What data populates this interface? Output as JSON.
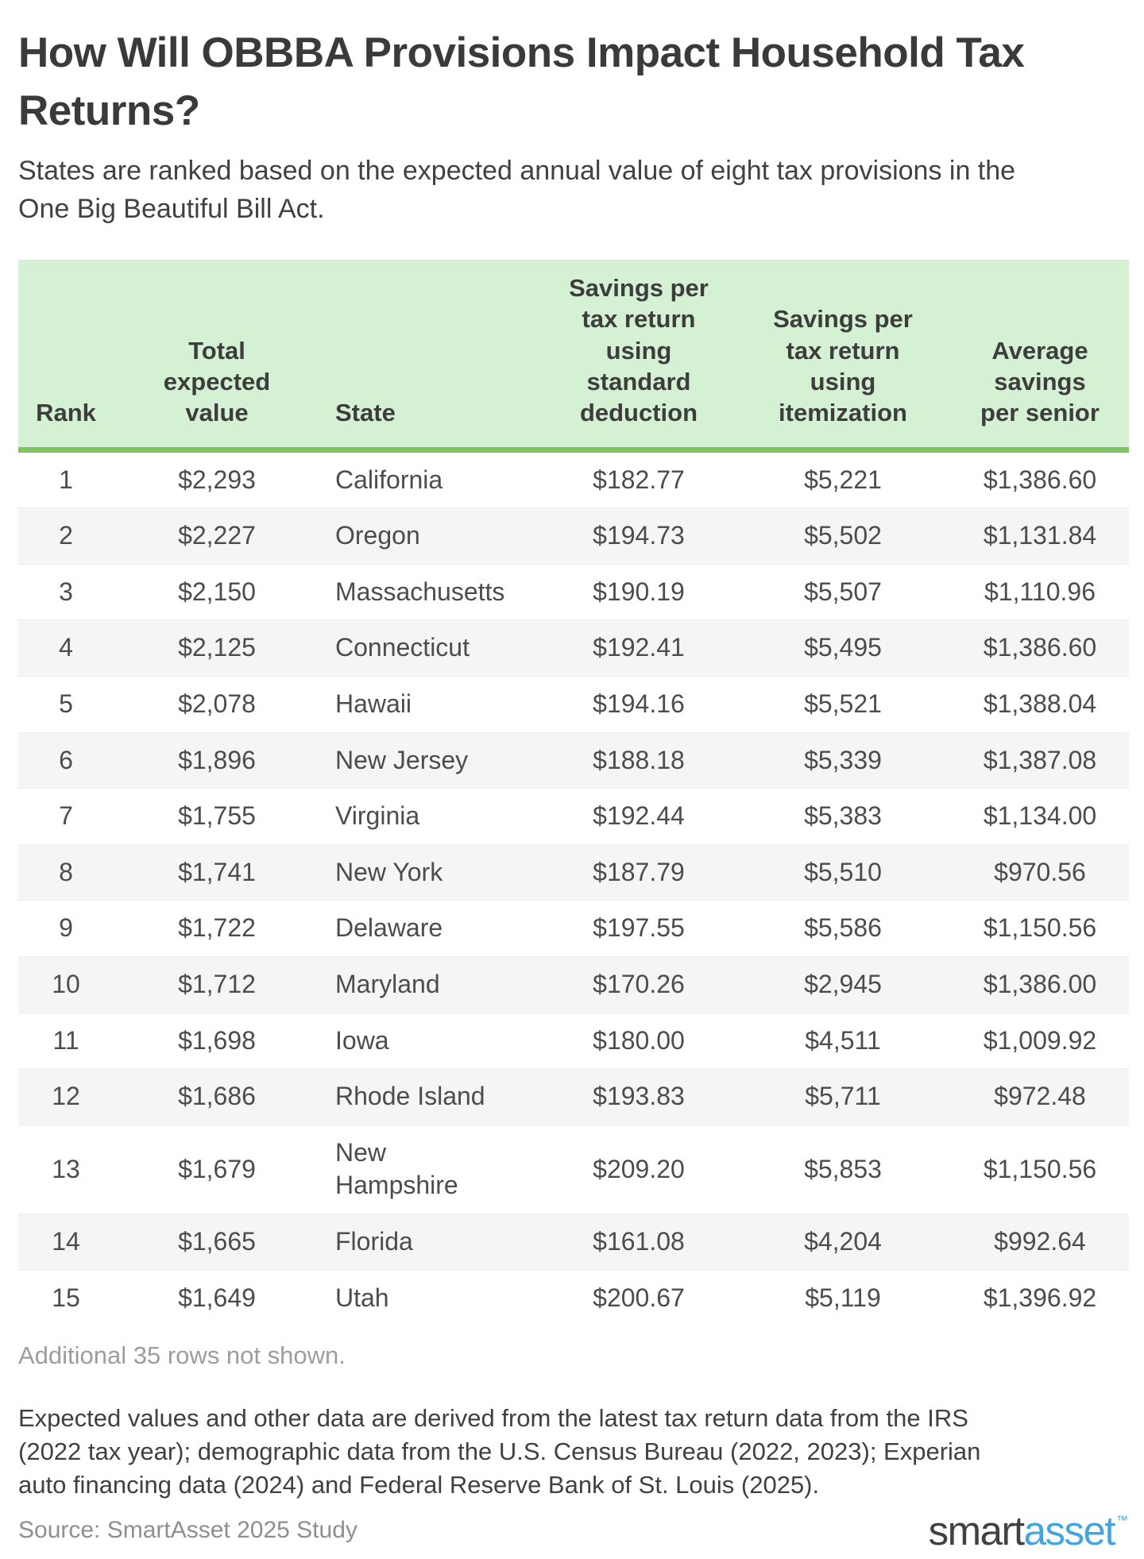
{
  "header": {
    "title_line1": "How Will OBBBA Provisions Impact Household Tax",
    "title_line2": "Returns?",
    "subtitle_line1": "States are ranked based on the expected annual value of eight tax provisions in the",
    "subtitle_line2": "One Big Beautiful Bill Act."
  },
  "table": {
    "header_labels": [
      "Rank",
      "Total\nexpected\nvalue",
      "State",
      "Savings per\ntax return\nusing\nstandard\ndeduction",
      "Savings per\ntax return\nusing\nitemization",
      "Average\nsavings\nper senior"
    ],
    "rows": [
      {
        "rank": "1",
        "total": "$2,293",
        "state": "California",
        "std_deduction": "$182.77",
        "itemization": "$5,221",
        "senior": "$1,386.60"
      },
      {
        "rank": "2",
        "total": "$2,227",
        "state": "Oregon",
        "std_deduction": "$194.73",
        "itemization": "$5,502",
        "senior": "$1,131.84"
      },
      {
        "rank": "3",
        "total": "$2,150",
        "state": "Massachusetts",
        "std_deduction": "$190.19",
        "itemization": "$5,507",
        "senior": "$1,110.96"
      },
      {
        "rank": "4",
        "total": "$2,125",
        "state": "Connecticut",
        "std_deduction": "$192.41",
        "itemization": "$5,495",
        "senior": "$1,386.60"
      },
      {
        "rank": "5",
        "total": "$2,078",
        "state": "Hawaii",
        "std_deduction": "$194.16",
        "itemization": "$5,521",
        "senior": "$1,388.04"
      },
      {
        "rank": "6",
        "total": "$1,896",
        "state": "New Jersey",
        "std_deduction": "$188.18",
        "itemization": "$5,339",
        "senior": "$1,387.08"
      },
      {
        "rank": "7",
        "total": "$1,755",
        "state": "Virginia",
        "std_deduction": "$192.44",
        "itemization": "$5,383",
        "senior": "$1,134.00"
      },
      {
        "rank": "8",
        "total": "$1,741",
        "state": "New York",
        "std_deduction": "$187.79",
        "itemization": "$5,510",
        "senior": "$970.56"
      },
      {
        "rank": "9",
        "total": "$1,722",
        "state": "Delaware",
        "std_deduction": "$197.55",
        "itemization": "$5,586",
        "senior": "$1,150.56"
      },
      {
        "rank": "10",
        "total": "$1,712",
        "state": "Maryland",
        "std_deduction": "$170.26",
        "itemization": "$2,945",
        "senior": "$1,386.00"
      },
      {
        "rank": "11",
        "total": "$1,698",
        "state": "Iowa",
        "std_deduction": "$180.00",
        "itemization": "$4,511",
        "senior": "$1,009.92"
      },
      {
        "rank": "12",
        "total": "$1,686",
        "state": "Rhode Island",
        "std_deduction": "$193.83",
        "itemization": "$5,711",
        "senior": "$972.48"
      },
      {
        "rank": "13",
        "total": "$1,679",
        "state": "New Hampshire",
        "std_deduction": "$209.20",
        "itemization": "$5,853",
        "senior": "$1,150.56"
      },
      {
        "rank": "14",
        "total": "$1,665",
        "state": "Florida",
        "std_deduction": "$161.08",
        "itemization": "$4,204",
        "senior": "$992.64"
      },
      {
        "rank": "15",
        "total": "$1,649",
        "state": "Utah",
        "std_deduction": "$200.67",
        "itemization": "$5,119",
        "senior": "$1,396.92"
      }
    ]
  },
  "notes": {
    "rows_note": "Additional 35 rows not shown.",
    "footnote": "Expected values and other data are derived from the latest tax return data from the IRS\n(2022 tax year); demographic data from the U.S. Census Bureau (2022, 2023); Experian\nauto financing data (2024) and Federal Reserve Bank of St. Louis (2025).",
    "source": "Source: SmartAsset 2025 Study"
  },
  "logo": {
    "smart": "smart",
    "asset": "asset",
    "tm": "™"
  },
  "colors": {
    "header_bg": "#d5f1d3",
    "header_underline": "#7ec35d",
    "stripe_row": "#f5f5f6",
    "logo_dark": "#414042",
    "logo_blue": "#44a5dc",
    "muted_gray": "#9d9d9d"
  },
  "chart_data": {
    "type": "table",
    "title": "How Will OBBBA Provisions Impact Household Tax Returns?",
    "subtitle": "States are ranked based on the expected annual value of eight tax provisions in the One Big Beautiful Bill Act.",
    "columns": [
      "Rank",
      "Total expected value",
      "State",
      "Savings per tax return using standard deduction",
      "Savings per tax return using itemization",
      "Average savings per senior"
    ],
    "rows": [
      [
        1,
        2293,
        "California",
        182.77,
        5221,
        1386.6
      ],
      [
        2,
        2227,
        "Oregon",
        194.73,
        5502,
        1131.84
      ],
      [
        3,
        2150,
        "Massachusetts",
        190.19,
        5507,
        1110.96
      ],
      [
        4,
        2125,
        "Connecticut",
        192.41,
        5495,
        1386.6
      ],
      [
        5,
        2078,
        "Hawaii",
        194.16,
        5521,
        1388.04
      ],
      [
        6,
        1896,
        "New Jersey",
        188.18,
        5339,
        1387.08
      ],
      [
        7,
        1755,
        "Virginia",
        192.44,
        5383,
        1134.0
      ],
      [
        8,
        1741,
        "New York",
        187.79,
        5510,
        970.56
      ],
      [
        9,
        1722,
        "Delaware",
        197.55,
        5586,
        1150.56
      ],
      [
        10,
        1712,
        "Maryland",
        170.26,
        2945,
        1386.0
      ],
      [
        11,
        1698,
        "Iowa",
        180.0,
        4511,
        1009.92
      ],
      [
        12,
        1686,
        "Rhode Island",
        193.83,
        5711,
        972.48
      ],
      [
        13,
        1679,
        "New Hampshire",
        209.2,
        5853,
        1150.56
      ],
      [
        14,
        1665,
        "Florida",
        161.08,
        4204,
        992.64
      ],
      [
        15,
        1649,
        "Utah",
        200.67,
        5119,
        1396.92
      ]
    ],
    "rows_not_shown": 35,
    "source": "SmartAsset 2025 Study"
  }
}
